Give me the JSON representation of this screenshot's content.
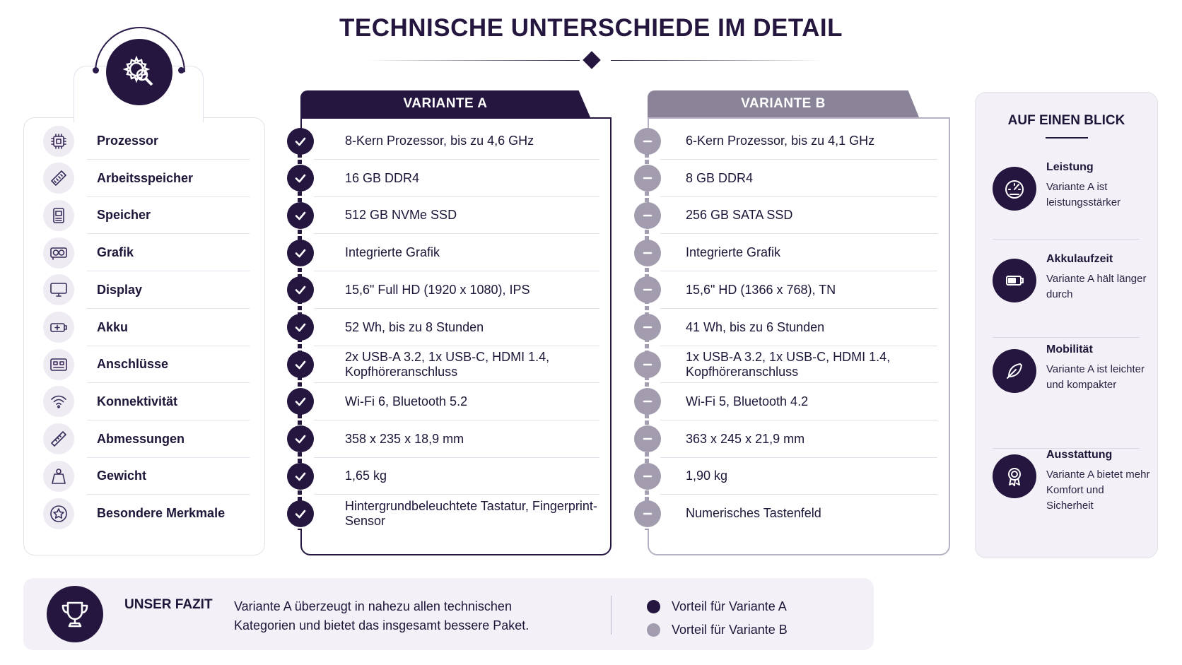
{
  "title": "TECHNISCHE UNTERSCHIEDE IM DETAIL",
  "features": [
    {
      "label": "Prozessor",
      "icon": "cpu-icon"
    },
    {
      "label": "Arbeitsspeicher",
      "icon": "ram-icon"
    },
    {
      "label": "Speicher",
      "icon": "ssd-icon"
    },
    {
      "label": "Grafik",
      "icon": "graphics-card-icon"
    },
    {
      "label": "Display",
      "icon": "monitor-icon"
    },
    {
      "label": "Akku",
      "icon": "battery-icon"
    },
    {
      "label": "Anschlüsse",
      "icon": "ports-icon"
    },
    {
      "label": "Konnektivität",
      "icon": "wifi-icon"
    },
    {
      "label": "Abmessungen",
      "icon": "ruler-icon"
    },
    {
      "label": "Gewicht",
      "icon": "weight-icon"
    },
    {
      "label": "Besondere Merkmale",
      "icon": "star-icon"
    }
  ],
  "variant_a": {
    "label": "VARIANTE A",
    "color": "#24163f",
    "rows": [
      "8-Kern Prozessor, bis zu 4,6 GHz",
      "16 GB DDR4",
      "512 GB NVMe SSD",
      "Integrierte Grafik",
      "15,6\" Full HD (1920 x 1080), IPS",
      "52 Wh, bis zu 8 Stunden",
      "2x USB-A 3.2, 1x USB-C, HDMI 1.4, Kopfhöreranschluss",
      "Wi-Fi 6, Bluetooth 5.2",
      "358 x 235 x 18,9 mm",
      "1,65 kg",
      "Hintergrundbeleuchtete Tastatur, Fingerprint-Sensor"
    ]
  },
  "variant_b": {
    "label": "VARIANTE B",
    "color": "#8b8499",
    "rows": [
      "6-Kern Prozessor, bis zu 4,1 GHz",
      "8 GB DDR4",
      "256 GB SATA SSD",
      "Integrierte Grafik",
      "15,6\" HD (1366 x 768), TN",
      "41 Wh, bis zu 6 Stunden",
      "1x USB-A 3.2, 1x USB-C, HDMI 1.4, Kopfhöreranschluss",
      "Wi-Fi 5, Bluetooth 4.2",
      "363 x 245 x 21,9 mm",
      "1,90 kg",
      "Numerisches Tastenfeld"
    ]
  },
  "glance": {
    "title": "AUF EINEN BLICK",
    "items": [
      {
        "heading": "Leistung",
        "text": "Variante A ist leistungsstärker",
        "icon": "speedometer-icon"
      },
      {
        "heading": "Akkulaufzeit",
        "text": "Variante A hält länger durch",
        "icon": "battery-icon"
      },
      {
        "heading": "Mobilität",
        "text": "Variante A ist leichter und kompakter",
        "icon": "feather-icon"
      },
      {
        "heading": "Ausstattung",
        "text": "Variante A bietet mehr Komfort und Sicherheit",
        "icon": "award-icon"
      }
    ]
  },
  "fazit": {
    "heading": "UNSER FAZIT",
    "text": "Variante A überzeugt in nahezu allen technischen Kategorien und bietet das insgesamt bessere Paket.",
    "legend_a": "Vorteil für Variante A",
    "legend_b": "Vorteil für Variante B"
  }
}
